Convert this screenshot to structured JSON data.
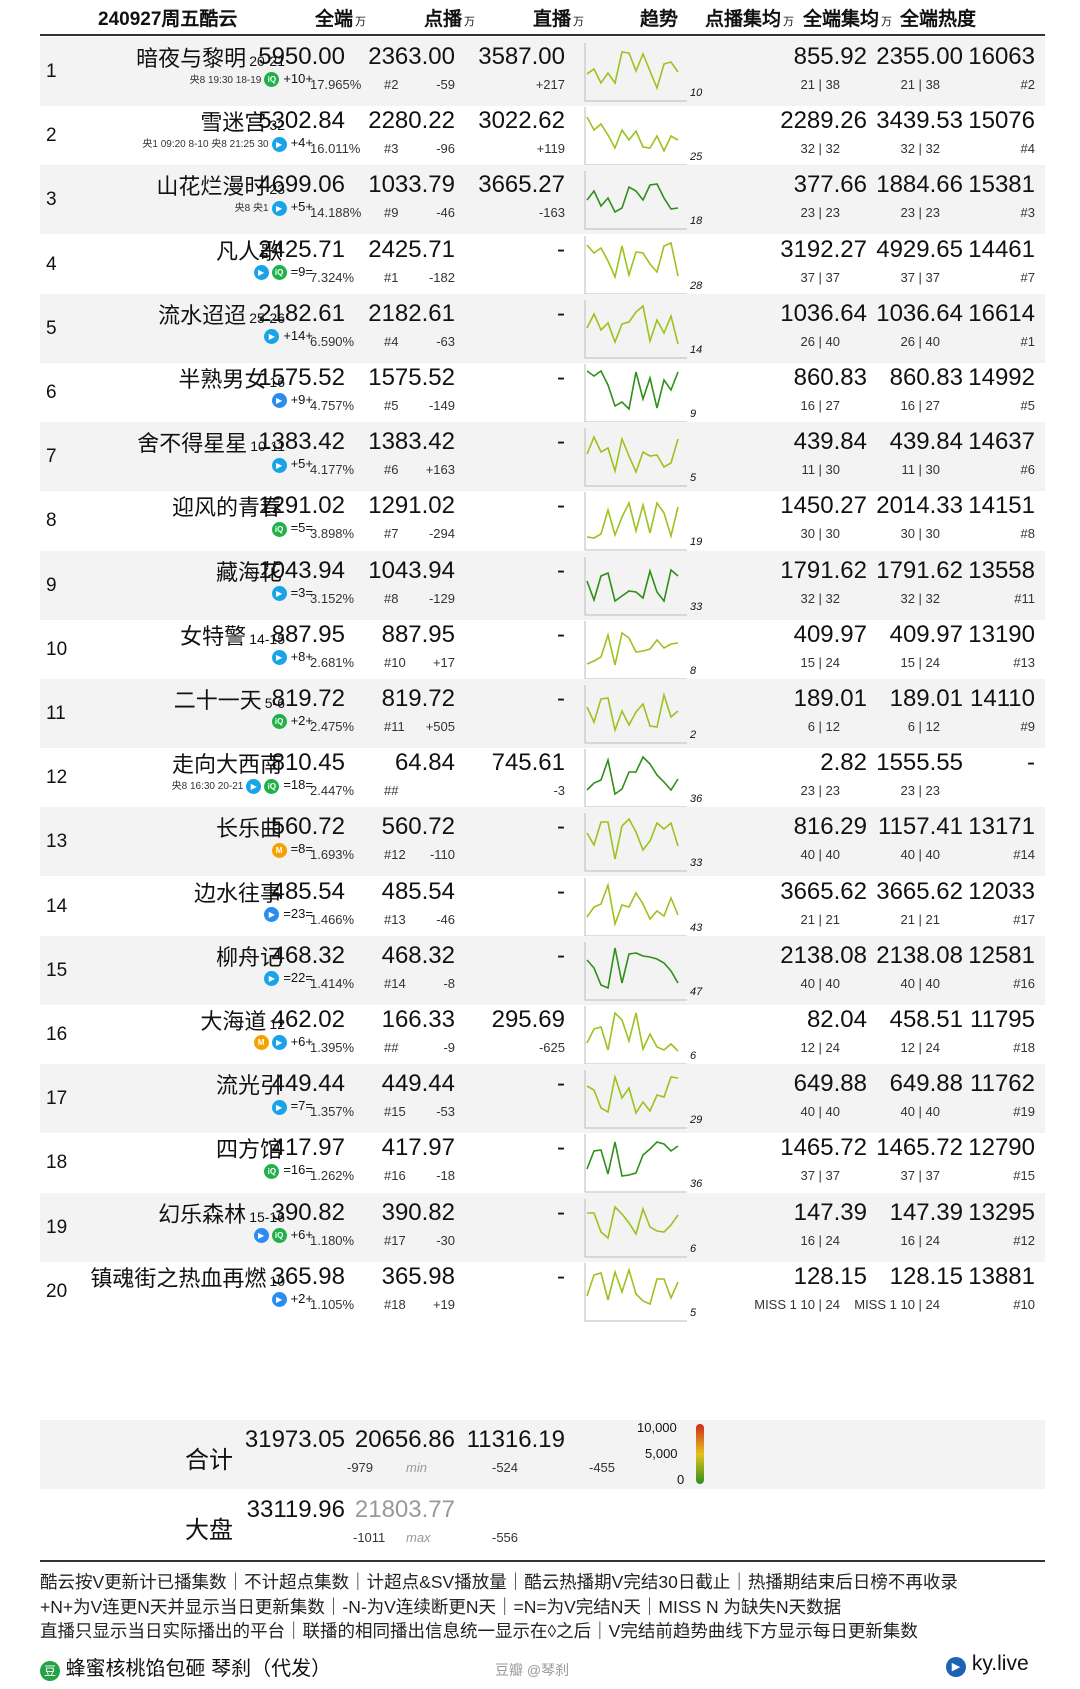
{
  "header": {
    "date_label": "240927周五酷云",
    "col_all": "全端",
    "col_vod": "点播",
    "col_live": "直播",
    "col_trend": "趋势",
    "col_vod_avg": "点播集均",
    "col_all_avg": "全端集均",
    "col_heat": "全端热度",
    "unit": "万"
  },
  "rows": [
    {
      "rank": "1",
      "title": "暗夜与黎明",
      "ep": "20-21",
      "sched": "央8 19:30 18-19",
      "change": "+10+",
      "platforms": [
        "iqiyi"
      ],
      "all": "5950.00",
      "share": "17.965%",
      "vod": "2363.00",
      "vod_rank": "#2",
      "vod_delta": "-59",
      "live": "3587.00",
      "live_delta": "+217",
      "trend_n": "10",
      "vod_avg": "855.92",
      "vod_avg_sub": "21 | 38",
      "all_avg": "2355.00",
      "all_avg_sub": "21 | 38",
      "heat": "16063",
      "heat_rank": "#2"
    },
    {
      "rank": "2",
      "title": "雪迷宫",
      "ep": "32",
      "sched": "央1 09:20 8-10 央8 21:25 30",
      "change": "+4+",
      "platforms": [
        "tencent"
      ],
      "all": "5302.84",
      "share": "16.011%",
      "vod": "2280.22",
      "vod_rank": "#3",
      "vod_delta": "-96",
      "live": "3022.62",
      "live_delta": "+119",
      "trend_n": "25",
      "vod_avg": "2289.26",
      "vod_avg_sub": "32 | 32",
      "all_avg": "3439.53",
      "all_avg_sub": "32 | 32",
      "heat": "15076",
      "heat_rank": "#4"
    },
    {
      "rank": "3",
      "title": "山花烂漫时",
      "ep": "23",
      "sched": "央8 央1",
      "change": "+5+",
      "platforms": [
        "tencent"
      ],
      "all": "4699.06",
      "share": "14.188%",
      "vod": "1033.79",
      "vod_rank": "#9",
      "vod_delta": "-46",
      "live": "3665.27",
      "live_delta": "-163",
      "trend_n": "18",
      "vod_avg": "377.66",
      "vod_avg_sub": "23 | 23",
      "all_avg": "1884.66",
      "all_avg_sub": "23 | 23",
      "heat": "15381",
      "heat_rank": "#3"
    },
    {
      "rank": "4",
      "title": "凡人歌",
      "ep": "",
      "sched": "",
      "change": "=9=",
      "platforms": [
        "tencent",
        "iqiyi"
      ],
      "all": "2425.71",
      "share": "7.324%",
      "vod": "2425.71",
      "vod_rank": "#1",
      "vod_delta": "-182",
      "live": "-",
      "live_delta": "",
      "trend_n": "28",
      "vod_avg": "3192.27",
      "vod_avg_sub": "37 | 37",
      "all_avg": "4929.65",
      "all_avg_sub": "37 | 37",
      "heat": "14461",
      "heat_rank": "#7"
    },
    {
      "rank": "5",
      "title": "流水迢迢",
      "ep": "25-26",
      "sched": "",
      "change": "+14+",
      "platforms": [
        "tencent"
      ],
      "all": "2182.61",
      "share": "6.590%",
      "vod": "2182.61",
      "vod_rank": "#4",
      "vod_delta": "-63",
      "live": "-",
      "live_delta": "",
      "trend_n": "14",
      "vod_avg": "1036.64",
      "vod_avg_sub": "26 | 40",
      "all_avg": "1036.64",
      "all_avg_sub": "26 | 40",
      "heat": "16614",
      "heat_rank": "#1"
    },
    {
      "rank": "6",
      "title": "半熟男女",
      "ep": "16",
      "sched": "",
      "change": "+9+",
      "platforms": [
        "youku"
      ],
      "all": "1575.52",
      "share": "4.757%",
      "vod": "1575.52",
      "vod_rank": "#5",
      "vod_delta": "-149",
      "live": "-",
      "live_delta": "",
      "trend_n": "9",
      "vod_avg": "860.83",
      "vod_avg_sub": "16 | 27",
      "all_avg": "860.83",
      "all_avg_sub": "16 | 27",
      "heat": "14992",
      "heat_rank": "#5"
    },
    {
      "rank": "7",
      "title": "舍不得星星",
      "ep": "10-11",
      "sched": "",
      "change": "+5+",
      "platforms": [
        "tencent"
      ],
      "all": "1383.42",
      "share": "4.177%",
      "vod": "1383.42",
      "vod_rank": "#6",
      "vod_delta": "+163",
      "live": "-",
      "live_delta": "",
      "trend_n": "5",
      "vod_avg": "439.84",
      "vod_avg_sub": "11 | 30",
      "all_avg": "439.84",
      "all_avg_sub": "11 | 30",
      "heat": "14637",
      "heat_rank": "#6"
    },
    {
      "rank": "8",
      "title": "迎风的青春",
      "ep": "",
      "sched": "",
      "change": "=5=",
      "platforms": [
        "iqiyi"
      ],
      "all": "1291.02",
      "share": "3.898%",
      "vod": "1291.02",
      "vod_rank": "#7",
      "vod_delta": "-294",
      "live": "-",
      "live_delta": "",
      "trend_n": "19",
      "vod_avg": "1450.27",
      "vod_avg_sub": "30 | 30",
      "all_avg": "2014.33",
      "all_avg_sub": "30 | 30",
      "heat": "14151",
      "heat_rank": "#8"
    },
    {
      "rank": "9",
      "title": "藏海花",
      "ep": "",
      "sched": "",
      "change": "=3=",
      "platforms": [
        "tencent"
      ],
      "all": "1043.94",
      "share": "3.152%",
      "vod": "1043.94",
      "vod_rank": "#8",
      "vod_delta": "-129",
      "live": "-",
      "live_delta": "",
      "trend_n": "33",
      "vod_avg": "1791.62",
      "vod_avg_sub": "32 | 32",
      "all_avg": "1791.62",
      "all_avg_sub": "32 | 32",
      "heat": "13558",
      "heat_rank": "#11"
    },
    {
      "rank": "10",
      "title": "女特警",
      "ep": "14-15",
      "sched": "",
      "change": "+8+",
      "platforms": [
        "tencent"
      ],
      "all": "887.95",
      "share": "2.681%",
      "vod": "887.95",
      "vod_rank": "#10",
      "vod_delta": "+17",
      "live": "-",
      "live_delta": "",
      "trend_n": "8",
      "vod_avg": "409.97",
      "vod_avg_sub": "15 | 24",
      "all_avg": "409.97",
      "all_avg_sub": "15 | 24",
      "heat": "13190",
      "heat_rank": "#13"
    },
    {
      "rank": "11",
      "title": "二十一天",
      "ep": "5-6",
      "sched": "",
      "change": "+2+",
      "platforms": [
        "iqiyi"
      ],
      "all": "819.72",
      "share": "2.475%",
      "vod": "819.72",
      "vod_rank": "#11",
      "vod_delta": "+505",
      "live": "-",
      "live_delta": "",
      "trend_n": "2",
      "vod_avg": "189.01",
      "vod_avg_sub": "6 | 12",
      "all_avg": "189.01",
      "all_avg_sub": "6 | 12",
      "heat": "14110",
      "heat_rank": "#9"
    },
    {
      "rank": "12",
      "title": "走向大西南",
      "ep": "",
      "sched": "央8 16:30 20-21",
      "change": "=18=",
      "platforms": [
        "tencent",
        "iqiyi"
      ],
      "all": "810.45",
      "share": "2.447%",
      "vod": "64.84",
      "vod_rank": "##",
      "vod_delta": "",
      "live": "745.61",
      "live_delta": "-3",
      "trend_n": "36",
      "vod_avg": "2.82",
      "vod_avg_sub": "23 | 23",
      "all_avg": "1555.55",
      "all_avg_sub": "23 | 23",
      "heat": "-",
      "heat_rank": ""
    },
    {
      "rank": "13",
      "title": "长乐曲",
      "ep": "",
      "sched": "",
      "change": "=8=",
      "platforms": [
        "mango"
      ],
      "all": "560.72",
      "share": "1.693%",
      "vod": "560.72",
      "vod_rank": "#12",
      "vod_delta": "-110",
      "live": "-",
      "live_delta": "",
      "trend_n": "33",
      "vod_avg": "816.29",
      "vod_avg_sub": "40 | 40",
      "all_avg": "1157.41",
      "all_avg_sub": "40 | 40",
      "heat": "13171",
      "heat_rank": "#14"
    },
    {
      "rank": "14",
      "title": "边水往事",
      "ep": "",
      "sched": "",
      "change": "=23=",
      "platforms": [
        "youku"
      ],
      "all": "485.54",
      "share": "1.466%",
      "vod": "485.54",
      "vod_rank": "#13",
      "vod_delta": "-46",
      "live": "-",
      "live_delta": "",
      "trend_n": "43",
      "vod_avg": "3665.62",
      "vod_avg_sub": "21 | 21",
      "all_avg": "3665.62",
      "all_avg_sub": "21 | 21",
      "heat": "12033",
      "heat_rank": "#17"
    },
    {
      "rank": "15",
      "title": "柳舟记",
      "ep": "",
      "sched": "",
      "change": "=22=",
      "platforms": [
        "tencent"
      ],
      "all": "468.32",
      "share": "1.414%",
      "vod": "468.32",
      "vod_rank": "#14",
      "vod_delta": "-8",
      "live": "-",
      "live_delta": "",
      "trend_n": "47",
      "vod_avg": "2138.08",
      "vod_avg_sub": "40 | 40",
      "all_avg": "2138.08",
      "all_avg_sub": "40 | 40",
      "heat": "12581",
      "heat_rank": "#16"
    },
    {
      "rank": "16",
      "title": "大海道",
      "ep": "12",
      "sched": "",
      "change": "+6+",
      "platforms": [
        "mango",
        "tencent"
      ],
      "all": "462.02",
      "share": "1.395%",
      "vod": "166.33",
      "vod_rank": "##",
      "vod_delta": "-9",
      "live": "295.69",
      "live_delta": "-625",
      "trend_n": "6",
      "vod_avg": "82.04",
      "vod_avg_sub": "12 | 24",
      "all_avg": "458.51",
      "all_avg_sub": "12 | 24",
      "heat": "11795",
      "heat_rank": "#18"
    },
    {
      "rank": "17",
      "title": "流光引",
      "ep": "",
      "sched": "",
      "change": "=7=",
      "platforms": [
        "tencent"
      ],
      "all": "449.44",
      "share": "1.357%",
      "vod": "449.44",
      "vod_rank": "#15",
      "vod_delta": "-53",
      "live": "-",
      "live_delta": "",
      "trend_n": "29",
      "vod_avg": "649.88",
      "vod_avg_sub": "40 | 40",
      "all_avg": "649.88",
      "all_avg_sub": "40 | 40",
      "heat": "11762",
      "heat_rank": "#19"
    },
    {
      "rank": "18",
      "title": "四方馆",
      "ep": "",
      "sched": "",
      "change": "=16=",
      "platforms": [
        "iqiyi"
      ],
      "all": "417.97",
      "share": "1.262%",
      "vod": "417.97",
      "vod_rank": "#16",
      "vod_delta": "-18",
      "live": "-",
      "live_delta": "",
      "trend_n": "36",
      "vod_avg": "1465.72",
      "vod_avg_sub": "37 | 37",
      "all_avg": "1465.72",
      "all_avg_sub": "37 | 37",
      "heat": "12790",
      "heat_rank": "#15"
    },
    {
      "rank": "19",
      "title": "幻乐森林",
      "ep": "15-16",
      "sched": "",
      "change": "+6+",
      "platforms": [
        "youku",
        "iqiyi"
      ],
      "all": "390.82",
      "share": "1.180%",
      "vod": "390.82",
      "vod_rank": "#17",
      "vod_delta": "-30",
      "live": "-",
      "live_delta": "",
      "trend_n": "6",
      "vod_avg": "147.39",
      "vod_avg_sub": "16 | 24",
      "all_avg": "147.39",
      "all_avg_sub": "16 | 24",
      "heat": "13295",
      "heat_rank": "#12"
    },
    {
      "rank": "20",
      "title": "镇魂街之热血再燃",
      "ep": "10",
      "sched": "",
      "change": "+2+",
      "platforms": [
        "youku"
      ],
      "all": "365.98",
      "share": "1.105%",
      "vod": "365.98",
      "vod_rank": "#18",
      "vod_delta": "+19",
      "live": "-",
      "live_delta": "",
      "trend_n": "5",
      "vod_avg": "128.15",
      "vod_avg_sub": "MISS 1 10 | 24",
      "all_avg": "128.15",
      "all_avg_sub": "MISS 1 10 | 24",
      "heat": "13881",
      "heat_rank": "#10"
    }
  ],
  "totals": {
    "total_label": "合计",
    "total_all": "31973.05",
    "total_all_delta": "-979",
    "total_vod": "20656.86",
    "total_vod_note": "min",
    "total_vod_delta": "-524",
    "total_live": "11316.19",
    "total_live_delta": "-455",
    "scale_max": "10,000",
    "scale_mid": "5,000",
    "scale_min": "0",
    "market_label": "大盘",
    "market_all": "33119.96",
    "market_all_delta": "-1011",
    "market_vod": "21803.77",
    "market_vod_note": "max",
    "market_vod_delta": "-556"
  },
  "footer": {
    "line1": "酷云按V更新计已播集数｜不计超点集数｜计超点&SV播放量｜酷云热播期V完结30日截止｜热播期结束后日榜不再收录",
    "line2": "+N+为V连更N天并显示当日更新集数｜-N-为V连续断更N天｜=N=为V完结N天｜MISS N 为缺失N天数据",
    "line3": "直播只显示当日实际播出的平台｜联播的相同播出信息统一显示在◊之后｜V完结前趋势曲线下方显示每日更新集数",
    "author": "蜂蜜核桃馅包砸 琴刹（代发）",
    "watermark": "豆瓣 @琴刹",
    "site": "ky.live"
  },
  "colors": {
    "accent_green": "#2f8f1a",
    "accent_yellow": "#e3c21b",
    "accent_red": "#d4281c",
    "row_alt": "#f3f3f3"
  }
}
